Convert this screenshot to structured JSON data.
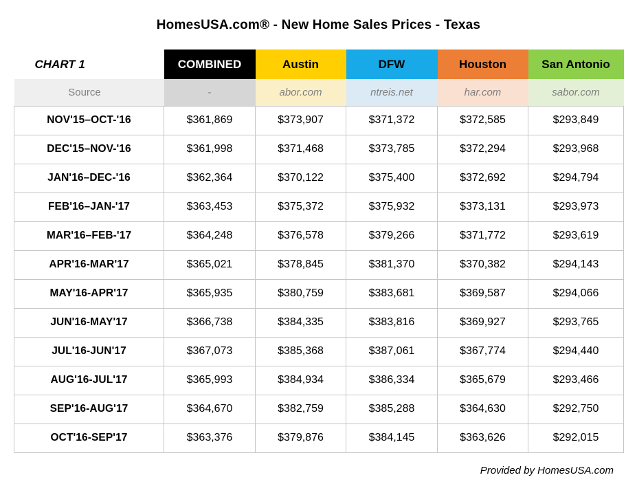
{
  "title": "HomesUSA.com® - New Home Sales Prices - Texas",
  "chart_label": "CHART 1",
  "source_label": "Source",
  "footer": "Provided by HomesUSA.com",
  "colors": {
    "grid_border": "#C6C6C6",
    "source_text": "#7F7F7F",
    "source_label_bg": "#EFEFEF"
  },
  "chart_data": {
    "type": "table",
    "title": "HomesUSA.com® - New Home Sales Prices - Texas",
    "corner_label": "CHART 1",
    "source_row_label": "Source",
    "value_format": "$#,###",
    "columns": [
      {
        "label": "COMBINED",
        "source": "-",
        "header_bg": "#000000",
        "header_fg": "#FFFFFF",
        "source_bg": "#D6D6D6"
      },
      {
        "label": "Austin",
        "source": "abor.com",
        "header_bg": "#FFCF01",
        "header_fg": "#000000",
        "source_bg": "#FBEFC8"
      },
      {
        "label": "DFW",
        "source": "ntreis.net",
        "header_bg": "#18A9E9",
        "header_fg": "#000000",
        "source_bg": "#DBEAF5"
      },
      {
        "label": "Houston",
        "source": "har.com",
        "header_bg": "#EC7F35",
        "header_fg": "#000000",
        "source_bg": "#FAE0D1"
      },
      {
        "label": "San Antonio",
        "source": "sabor.com",
        "header_bg": "#8DCF4A",
        "header_fg": "#000000",
        "source_bg": "#E4F0D5"
      }
    ],
    "periods": [
      "NOV'15–OCT-'16",
      "DEC'15–NOV-'16",
      "JAN'16–DEC-'16",
      "FEB'16–JAN-'17",
      "MAR'16–FEB-'17",
      "APR'16-MAR'17",
      "MAY'16-APR'17",
      "JUN'16-MAY'17",
      "JUL'16-JUN'17",
      "AUG'16-JUL'17",
      "SEP'16-AUG'17",
      "OCT'16-SEP'17"
    ],
    "series": [
      {
        "name": "COMBINED",
        "values": [
          361869,
          361998,
          362364,
          363453,
          364248,
          365021,
          365935,
          366738,
          367073,
          365993,
          364670,
          363376
        ]
      },
      {
        "name": "Austin",
        "values": [
          373907,
          371468,
          370122,
          375372,
          376578,
          378845,
          380759,
          384335,
          385368,
          384934,
          382759,
          379876
        ]
      },
      {
        "name": "DFW",
        "values": [
          371372,
          373785,
          375400,
          375932,
          379266,
          381370,
          383681,
          383816,
          387061,
          386334,
          385288,
          384145
        ]
      },
      {
        "name": "Houston",
        "values": [
          372585,
          372294,
          372692,
          373131,
          371772,
          370382,
          369587,
          369927,
          367774,
          365679,
          364630,
          363626
        ]
      },
      {
        "name": "San Antonio",
        "values": [
          293849,
          293968,
          294794,
          293973,
          293619,
          294143,
          294066,
          293765,
          294440,
          293466,
          292750,
          292015
        ]
      }
    ]
  }
}
